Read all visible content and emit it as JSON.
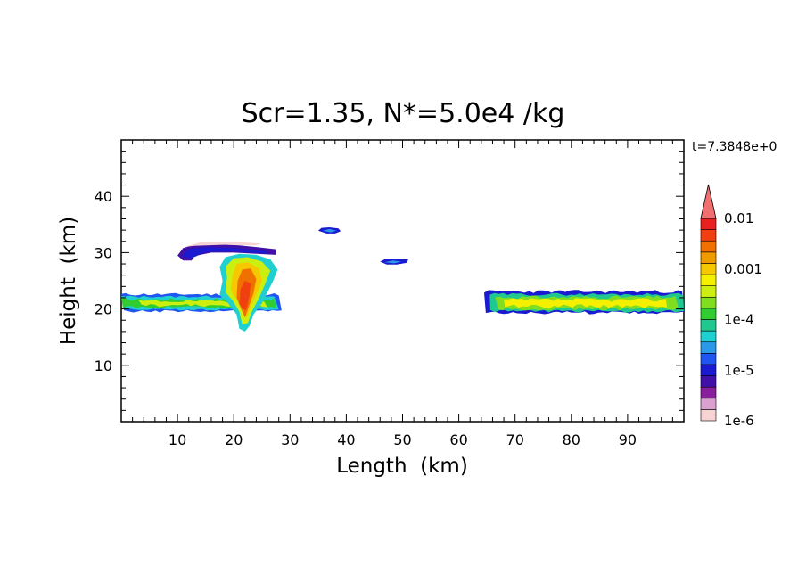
{
  "chart_data": {
    "type": "heatmap",
    "title": "Scr=1.35, N*=5.0e4 /kg",
    "time_label": "t=7.3848e+0",
    "xlabel": "Length  (km)",
    "ylabel": "Height  (km)",
    "xlim": [
      0,
      100
    ],
    "ylim": [
      0,
      50
    ],
    "xticks": [
      10,
      20,
      30,
      40,
      50,
      60,
      70,
      80,
      90
    ],
    "yticks": [
      10,
      20,
      30,
      40
    ],
    "colorbar": {
      "labels": [
        "0.01",
        "0.001",
        "1e-4",
        "1e-5",
        "1e-6"
      ],
      "levels": [
        "1e-6",
        "2e-6",
        "5e-6",
        "1e-5",
        "2e-5",
        "5e-5",
        "1e-4",
        "2e-4",
        "5e-4",
        "1e-3",
        "2e-3",
        "5e-3",
        "1e-2"
      ],
      "colors": [
        "#f7d4d4",
        "#d9a0d0",
        "#8a1f9e",
        "#4010a8",
        "#1a1ad0",
        "#1f55f0",
        "#2a9ae8",
        "#20d0d0",
        "#20c890",
        "#30cc30",
        "#80dd20",
        "#ccee10",
        "#f5f000",
        "#f5c800",
        "#f09a00",
        "#f07000",
        "#f04010",
        "#e82020",
        "#f07070"
      ]
    },
    "features": [
      {
        "name": "main-layer-left",
        "x": [
          0,
          28
        ],
        "y": [
          19.5,
          22.5
        ],
        "level": "1e-4"
      },
      {
        "name": "main-layer-right",
        "x": [
          65,
          100
        ],
        "y": [
          19.5,
          23
        ],
        "level": "1e-4"
      },
      {
        "name": "convective-tower",
        "x": [
          18,
          28
        ],
        "y": [
          16,
          30
        ],
        "level": "1e-3"
      },
      {
        "name": "anvil-upper",
        "x": [
          10,
          28
        ],
        "y": [
          28.5,
          31
        ],
        "level": "1e-5"
      },
      {
        "name": "small-cloud-1",
        "x": [
          35,
          39
        ],
        "y": [
          33.5,
          34.3
        ],
        "level": "1e-5"
      },
      {
        "name": "small-cloud-2",
        "x": [
          46,
          51
        ],
        "y": [
          28,
          28.8
        ],
        "level": "1e-5"
      }
    ]
  }
}
